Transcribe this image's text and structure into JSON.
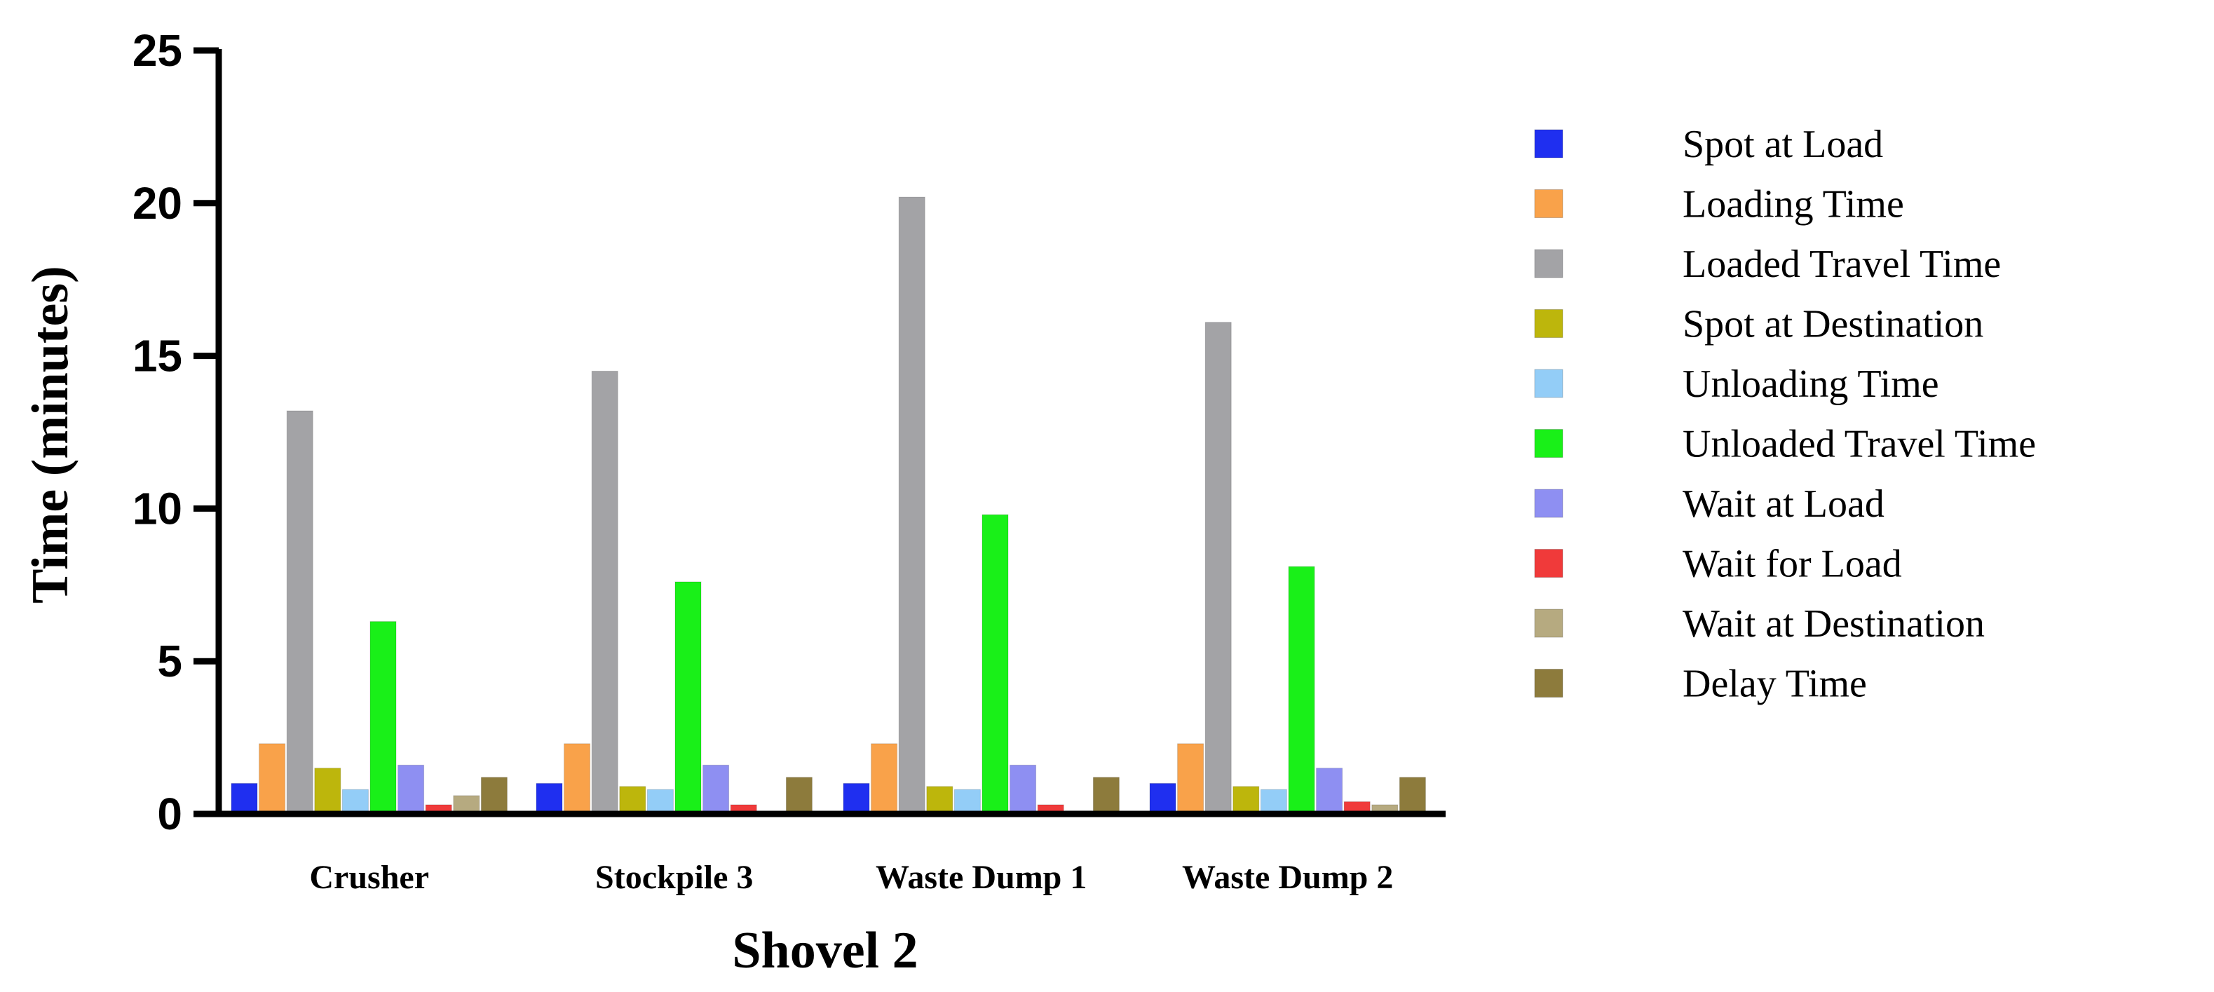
{
  "chart_data": {
    "type": "bar",
    "title": "",
    "xlabel": "Shovel 2",
    "ylabel": "Time (minutes)",
    "ylim": [
      0,
      25
    ],
    "yticks": [
      "0",
      "5",
      "10",
      "15",
      "20",
      "25"
    ],
    "categories": [
      "Crusher",
      "Stockpile 3",
      "Waste Dump 1",
      "Waste Dump 2"
    ],
    "legend_position": "right",
    "series": [
      {
        "name": "Spot at Load",
        "color": "#1f2ff0",
        "values": [
          1.0,
          1.0,
          1.0,
          1.0
        ]
      },
      {
        "name": "Loading Time",
        "color": "#f9a24a",
        "values": [
          2.3,
          2.3,
          2.3,
          2.3
        ]
      },
      {
        "name": "Loaded Travel Time",
        "color": "#a3a3a6",
        "values": [
          13.2,
          14.5,
          20.2,
          16.1
        ]
      },
      {
        "name": "Spot at Destination",
        "color": "#bdb60c",
        "values": [
          1.5,
          0.9,
          0.9,
          0.9
        ]
      },
      {
        "name": "Unloading Time",
        "color": "#93cdf7",
        "values": [
          0.8,
          0.8,
          0.8,
          0.8
        ]
      },
      {
        "name": "Unloaded Travel Time",
        "color": "#19f018",
        "values": [
          6.3,
          7.6,
          9.8,
          8.1
        ]
      },
      {
        "name": "Wait at Load",
        "color": "#8e8ff2",
        "values": [
          1.6,
          1.6,
          1.6,
          1.5
        ]
      },
      {
        "name": "Wait for Load",
        "color": "#f03a3a",
        "values": [
          0.3,
          0.3,
          0.3,
          0.4
        ]
      },
      {
        "name": "Wait at Destination",
        "color": "#b6aa80",
        "values": [
          0.6,
          0.0,
          0.1,
          0.3
        ]
      },
      {
        "name": "Delay Time",
        "color": "#8d7b3c",
        "values": [
          1.2,
          1.2,
          1.2,
          1.2
        ]
      }
    ]
  }
}
